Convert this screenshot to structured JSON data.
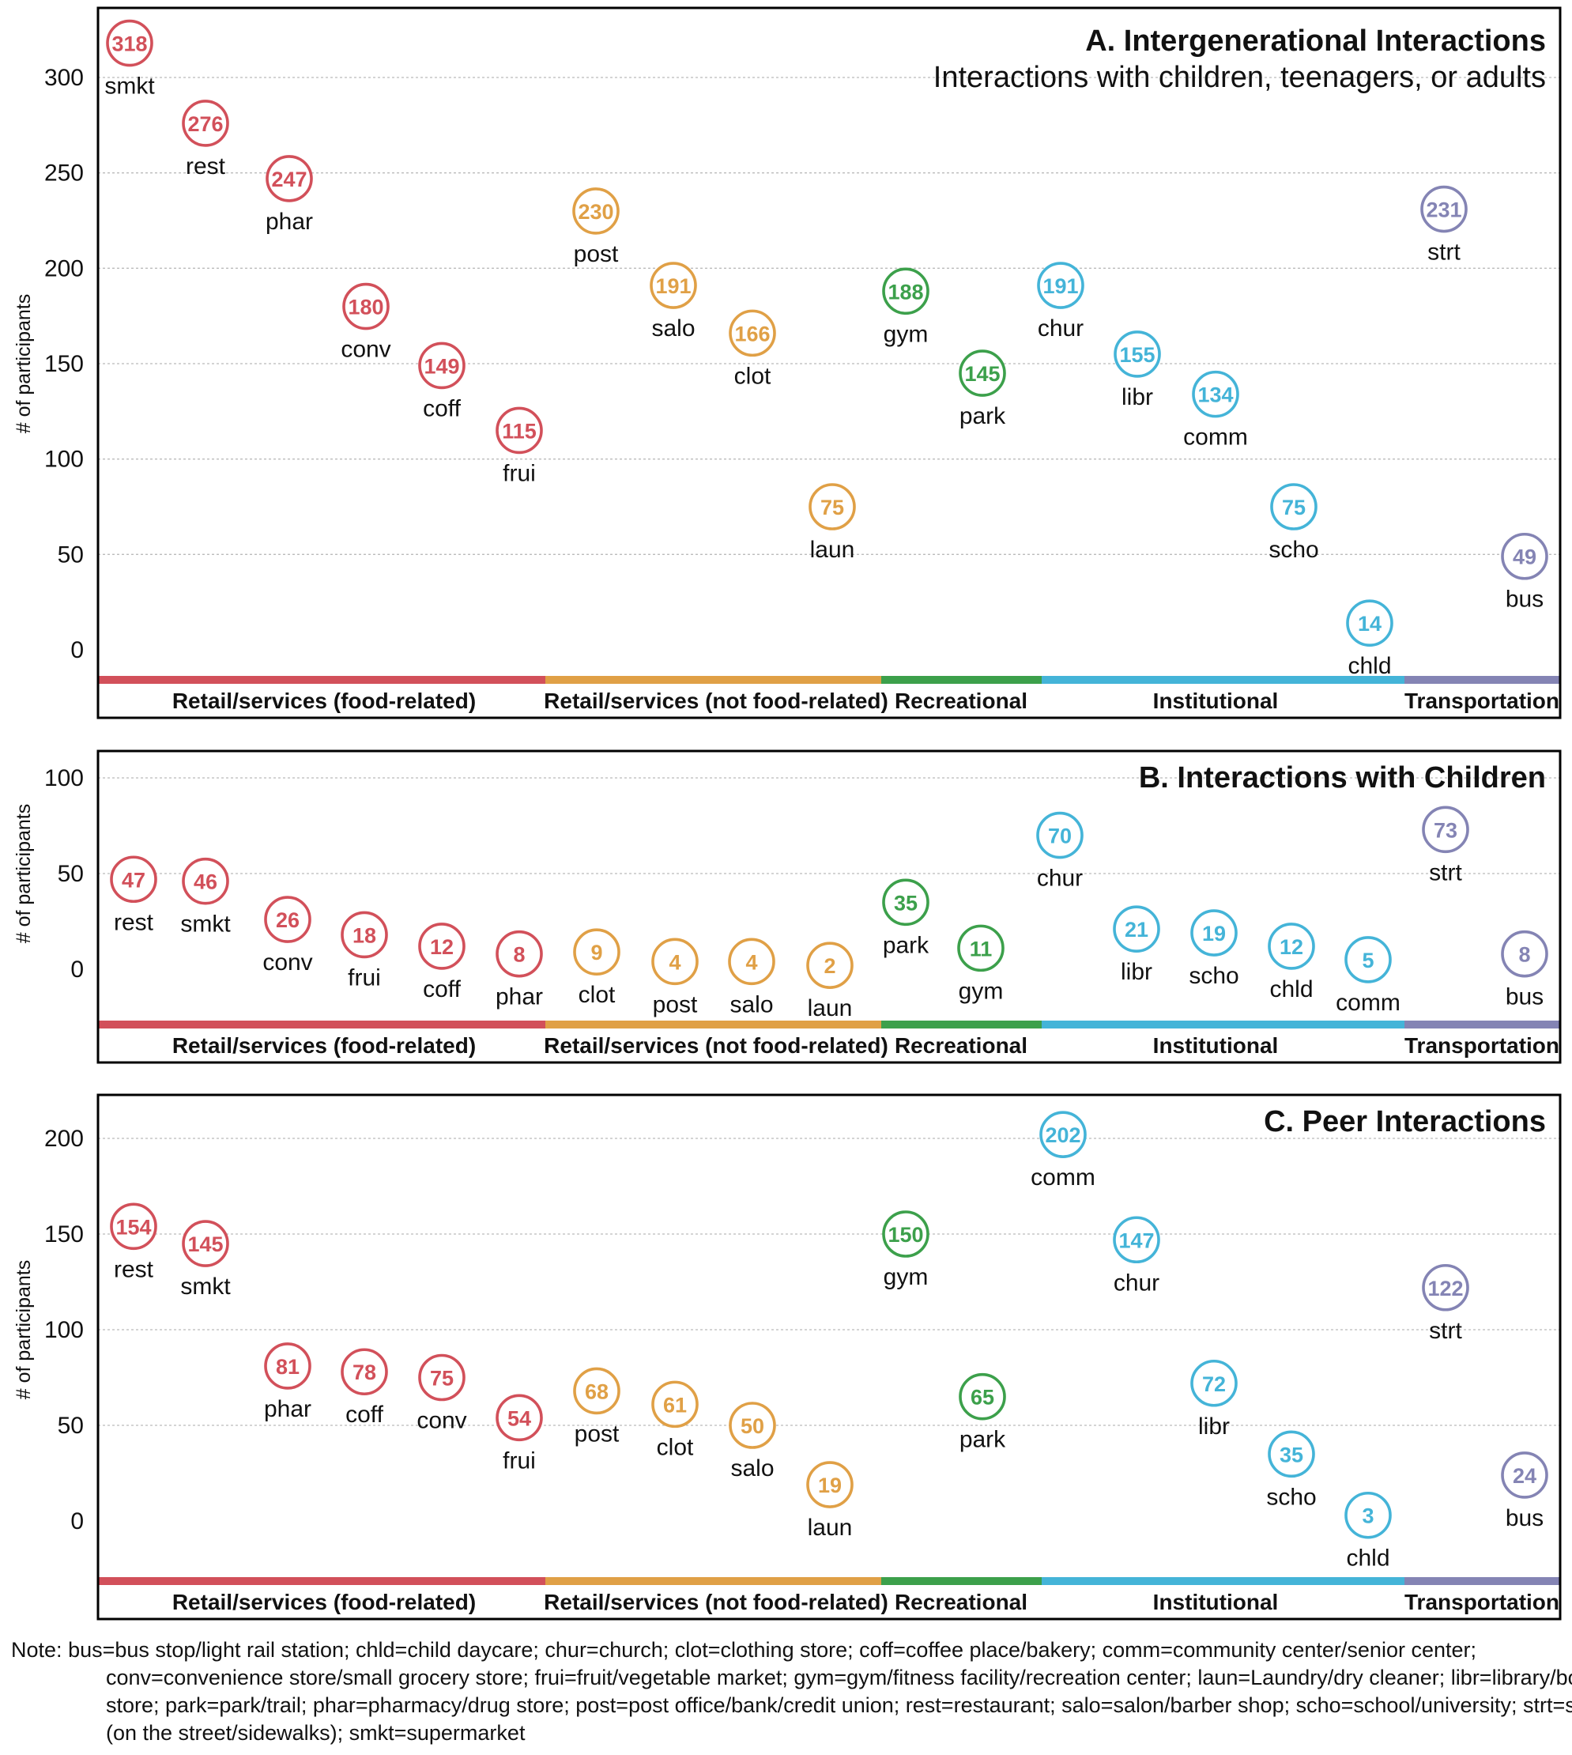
{
  "colors": {
    "food": "#d2505a",
    "nonfood": "#e0a046",
    "rec": "#3ca04b",
    "inst": "#44b4d8",
    "trans": "#8484b4",
    "grid": "#bbbbbb",
    "frame": "#000000"
  },
  "category_labels": {
    "food": "Retail/services (food-related)",
    "nonfood": "Retail/services (not food-related)",
    "rec": "Recreational",
    "inst": "Institutional",
    "trans": "Transportation"
  },
  "chart_data": [
    {
      "type": "scatter",
      "panel": "A",
      "title": "A. Intergenerational Interactions",
      "subtitle": "Interactions with children, teenagers, or adults",
      "ylabel": "# of participants",
      "ylim": [
        -20,
        325
      ],
      "yticks": [
        0,
        50,
        100,
        150,
        200,
        250,
        300
      ],
      "points": [
        {
          "label": "smkt",
          "value": 318,
          "cat": "food"
        },
        {
          "label": "rest",
          "value": 276,
          "cat": "food"
        },
        {
          "label": "phar",
          "value": 247,
          "cat": "food"
        },
        {
          "label": "conv",
          "value": 180,
          "cat": "food"
        },
        {
          "label": "coff",
          "value": 149,
          "cat": "food"
        },
        {
          "label": "frui",
          "value": 115,
          "cat": "food"
        },
        {
          "label": "post",
          "value": 230,
          "cat": "nonfood"
        },
        {
          "label": "salo",
          "value": 191,
          "cat": "nonfood"
        },
        {
          "label": "clot",
          "value": 166,
          "cat": "nonfood"
        },
        {
          "label": "laun",
          "value": 75,
          "cat": "nonfood"
        },
        {
          "label": "gym",
          "value": 188,
          "cat": "rec"
        },
        {
          "label": "park",
          "value": 145,
          "cat": "rec"
        },
        {
          "label": "chur",
          "value": 191,
          "cat": "inst"
        },
        {
          "label": "libr",
          "value": 155,
          "cat": "inst"
        },
        {
          "label": "comm",
          "value": 134,
          "cat": "inst"
        },
        {
          "label": "scho",
          "value": 75,
          "cat": "inst"
        },
        {
          "label": "chld",
          "value": 14,
          "cat": "inst"
        },
        {
          "label": "strt",
          "value": 231,
          "cat": "trans"
        },
        {
          "label": "bus",
          "value": 49,
          "cat": "trans"
        }
      ]
    },
    {
      "type": "scatter",
      "panel": "B",
      "title": "B. Interactions with Children",
      "subtitle": "",
      "ylabel": "# of participants",
      "ylim": [
        -30,
        100
      ],
      "yticks": [
        0,
        50,
        100
      ],
      "points": [
        {
          "label": "rest",
          "value": 47,
          "cat": "food"
        },
        {
          "label": "smkt",
          "value": 46,
          "cat": "food"
        },
        {
          "label": "conv",
          "value": 26,
          "cat": "food"
        },
        {
          "label": "frui",
          "value": 18,
          "cat": "food"
        },
        {
          "label": "coff",
          "value": 12,
          "cat": "food"
        },
        {
          "label": "phar",
          "value": 8,
          "cat": "food"
        },
        {
          "label": "clot",
          "value": 9,
          "cat": "nonfood"
        },
        {
          "label": "post",
          "value": 4,
          "cat": "nonfood"
        },
        {
          "label": "salo",
          "value": 4,
          "cat": "nonfood"
        },
        {
          "label": "laun",
          "value": 2,
          "cat": "nonfood"
        },
        {
          "label": "park",
          "value": 35,
          "cat": "rec"
        },
        {
          "label": "gym",
          "value": 11,
          "cat": "rec"
        },
        {
          "label": "chur",
          "value": 70,
          "cat": "inst"
        },
        {
          "label": "libr",
          "value": 21,
          "cat": "inst"
        },
        {
          "label": "scho",
          "value": 19,
          "cat": "inst"
        },
        {
          "label": "chld",
          "value": 12,
          "cat": "inst"
        },
        {
          "label": "comm",
          "value": 5,
          "cat": "inst"
        },
        {
          "label": "strt",
          "value": 73,
          "cat": "trans"
        },
        {
          "label": "bus",
          "value": 8,
          "cat": "trans"
        }
      ]
    },
    {
      "type": "scatter",
      "panel": "C",
      "title": "C. Peer Interactions",
      "subtitle": "",
      "ylabel": "# of participants",
      "ylim": [
        -30,
        210
      ],
      "yticks": [
        0,
        50,
        100,
        150,
        200
      ],
      "points": [
        {
          "label": "rest",
          "value": 154,
          "cat": "food"
        },
        {
          "label": "smkt",
          "value": 145,
          "cat": "food"
        },
        {
          "label": "phar",
          "value": 81,
          "cat": "food"
        },
        {
          "label": "coff",
          "value": 78,
          "cat": "food"
        },
        {
          "label": "conv",
          "value": 75,
          "cat": "food"
        },
        {
          "label": "frui",
          "value": 54,
          "cat": "food"
        },
        {
          "label": "post",
          "value": 68,
          "cat": "nonfood"
        },
        {
          "label": "clot",
          "value": 61,
          "cat": "nonfood"
        },
        {
          "label": "salo",
          "value": 50,
          "cat": "nonfood"
        },
        {
          "label": "laun",
          "value": 19,
          "cat": "nonfood"
        },
        {
          "label": "gym",
          "value": 150,
          "cat": "rec"
        },
        {
          "label": "park",
          "value": 65,
          "cat": "rec"
        },
        {
          "label": "comm",
          "value": 202,
          "cat": "inst"
        },
        {
          "label": "chur",
          "value": 147,
          "cat": "inst"
        },
        {
          "label": "libr",
          "value": 72,
          "cat": "inst"
        },
        {
          "label": "scho",
          "value": 35,
          "cat": "inst"
        },
        {
          "label": "chld",
          "value": 3,
          "cat": "inst"
        },
        {
          "label": "strt",
          "value": 122,
          "cat": "trans"
        },
        {
          "label": "bus",
          "value": 24,
          "cat": "trans"
        }
      ]
    }
  ],
  "note": {
    "label": "Note:",
    "text": "bus=bus stop/light rail station; chld=child daycare; chur=church; clot=clothing store; coff=coffee place/bakery; comm=community center/senior center; conv=convenience store/small grocery store; frui=fruit/vegetable market; gym=gym/fitness facility/recreation center; laun=Laundry/dry cleaner; libr=library/book store; park=park/trail; phar=pharmacy/drug store; post=post office/bank/credit union; rest=restaurant; salo=salon/barber shop; scho=school/university; strt=street (on the street/sidewalks); smkt=supermarket"
  }
}
